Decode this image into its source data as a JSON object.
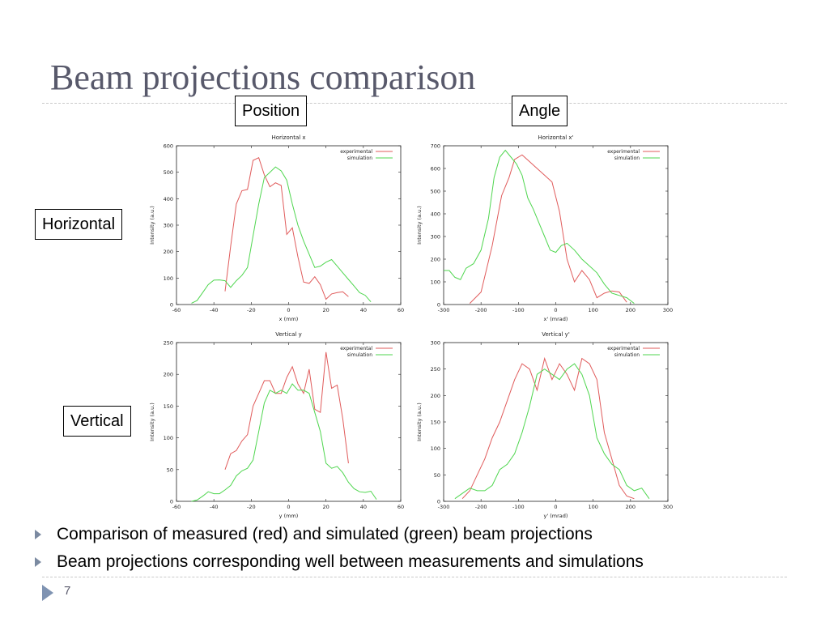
{
  "slide": {
    "title": "Beam projections comparison",
    "col_labels": [
      "Position",
      "Angle"
    ],
    "row_labels": [
      "Horizontal",
      "Vertical"
    ],
    "bullets": [
      "Comparison of measured (red) and simulated (green) beam projections",
      "Beam projections corresponding well between measurements and simulations"
    ],
    "page_number": "7"
  },
  "colors": {
    "experimental": "#e05b5b",
    "simulation": "#4fd64f",
    "title": "#58596b",
    "bullet": "#7b8aa1"
  },
  "icons": {
    "bullet": "triangle-bullet-icon",
    "footer": "triangle-footer-icon"
  },
  "chart_data": [
    {
      "type": "line",
      "title": "Horizontal x",
      "xlabel": "x (mm)",
      "ylabel": "Intensity (a.u.)",
      "xlim": [
        -60,
        60
      ],
      "ylim": [
        0,
        600
      ],
      "xticks": [
        "-60",
        "-40",
        "-20",
        "0",
        "20",
        "40",
        "60"
      ],
      "yticks": [
        "0",
        "100",
        "200",
        "300",
        "400",
        "500",
        "600"
      ],
      "legend": "top-right",
      "series": [
        {
          "name": "experimental",
          "x": [
            -34,
            -31,
            -28,
            -25,
            -22,
            -19,
            -16,
            -13,
            -10,
            -7,
            -4,
            -1,
            2,
            5,
            8,
            11,
            14,
            17,
            20,
            23,
            26,
            29,
            32
          ],
          "y": [
            50,
            220,
            380,
            430,
            435,
            545,
            555,
            490,
            445,
            460,
            450,
            265,
            290,
            180,
            85,
            80,
            105,
            75,
            20,
            40,
            45,
            48,
            30
          ]
        },
        {
          "name": "simulation",
          "x": [
            -52,
            -49,
            -46,
            -43,
            -40,
            -37,
            -34,
            -31,
            -28,
            -25,
            -22,
            -19,
            -16,
            -13,
            -10,
            -7,
            -4,
            -1,
            2,
            5,
            8,
            11,
            14,
            17,
            20,
            23,
            26,
            29,
            32,
            35,
            38,
            41,
            44
          ],
          "y": [
            5,
            15,
            45,
            75,
            92,
            93,
            90,
            65,
            90,
            110,
            140,
            260,
            380,
            480,
            500,
            520,
            505,
            470,
            380,
            300,
            240,
            190,
            140,
            145,
            160,
            170,
            145,
            120,
            95,
            70,
            45,
            35,
            10
          ]
        }
      ]
    },
    {
      "type": "line",
      "title": "Horizontal x'",
      "xlabel": "x' (mrad)",
      "ylabel": "Intensity (a.u.)",
      "xlim": [
        -300,
        300
      ],
      "ylim": [
        0,
        700
      ],
      "xticks": [
        "-300",
        "-200",
        "-100",
        "0",
        "100",
        "200",
        "300"
      ],
      "yticks": [
        "0",
        "100",
        "200",
        "300",
        "400",
        "500",
        "600",
        "700"
      ],
      "legend": "top-right",
      "series": [
        {
          "name": "experimental",
          "x": [
            -230,
            -200,
            -170,
            -145,
            -125,
            -110,
            -90,
            -70,
            -50,
            -30,
            -10,
            10,
            30,
            50,
            70,
            90,
            110,
            130,
            150,
            170,
            190
          ],
          "y": [
            5,
            55,
            260,
            480,
            560,
            640,
            660,
            630,
            600,
            570,
            540,
            410,
            200,
            100,
            150,
            110,
            30,
            50,
            60,
            55,
            10
          ]
        },
        {
          "name": "simulation",
          "x": [
            -300,
            -285,
            -270,
            -255,
            -240,
            -220,
            -200,
            -180,
            -165,
            -150,
            -135,
            -120,
            -105,
            -90,
            -75,
            -60,
            -45,
            -30,
            -15,
            0,
            15,
            30,
            50,
            70,
            90,
            110,
            130,
            150,
            170,
            190,
            210
          ],
          "y": [
            150,
            150,
            120,
            110,
            160,
            180,
            240,
            380,
            560,
            650,
            680,
            650,
            620,
            570,
            470,
            420,
            360,
            300,
            240,
            230,
            260,
            270,
            240,
            200,
            170,
            140,
            90,
            50,
            40,
            30,
            5
          ]
        }
      ]
    },
    {
      "type": "line",
      "title": "Vertical y",
      "xlabel": "y (mm)",
      "ylabel": "Intensity (a.u.)",
      "xlim": [
        -60,
        60
      ],
      "ylim": [
        0,
        250
      ],
      "xticks": [
        "-60",
        "-40",
        "-20",
        "0",
        "20",
        "40",
        "60"
      ],
      "yticks": [
        "0",
        "50",
        "100",
        "150",
        "200",
        "250"
      ],
      "legend": "top-right",
      "series": [
        {
          "name": "experimental",
          "x": [
            -34,
            -31,
            -28,
            -25,
            -22,
            -19,
            -16,
            -13,
            -10,
            -7,
            -4,
            -1,
            2,
            5,
            8,
            11,
            14,
            17,
            20,
            23,
            26,
            29,
            32
          ],
          "y": [
            50,
            75,
            80,
            95,
            105,
            150,
            170,
            190,
            190,
            170,
            170,
            195,
            212,
            185,
            170,
            208,
            145,
            140,
            235,
            178,
            183,
            130,
            60
          ]
        },
        {
          "name": "simulation",
          "x": [
            -52,
            -49,
            -46,
            -43,
            -40,
            -37,
            -34,
            -31,
            -28,
            -25,
            -22,
            -19,
            -16,
            -13,
            -10,
            -7,
            -4,
            -1,
            2,
            5,
            8,
            11,
            14,
            17,
            20,
            23,
            26,
            29,
            32,
            35,
            38,
            41,
            44,
            47
          ],
          "y": [
            0,
            2,
            8,
            15,
            12,
            12,
            18,
            25,
            40,
            48,
            52,
            65,
            110,
            155,
            175,
            170,
            175,
            170,
            185,
            175,
            175,
            170,
            140,
            110,
            60,
            52,
            55,
            45,
            30,
            20,
            15,
            14,
            16,
            3
          ]
        }
      ]
    },
    {
      "type": "line",
      "title": "Vertical y'",
      "xlabel": "y' (mrad)",
      "ylabel": "Intensity (a.u.)",
      "xlim": [
        -300,
        300
      ],
      "ylim": [
        0,
        300
      ],
      "xticks": [
        "-300",
        "-200",
        "-100",
        "0",
        "100",
        "200",
        "300"
      ],
      "yticks": [
        "0",
        "50",
        "100",
        "150",
        "200",
        "250",
        "300"
      ],
      "legend": "top-right",
      "series": [
        {
          "name": "experimental",
          "x": [
            -250,
            -230,
            -210,
            -190,
            -170,
            -150,
            -130,
            -110,
            -90,
            -70,
            -50,
            -30,
            -10,
            10,
            30,
            50,
            70,
            90,
            110,
            130,
            150,
            170,
            190,
            210
          ],
          "y": [
            5,
            20,
            50,
            80,
            120,
            150,
            190,
            230,
            260,
            250,
            210,
            270,
            230,
            260,
            240,
            210,
            270,
            260,
            230,
            130,
            80,
            30,
            10,
            5
          ]
        },
        {
          "name": "simulation",
          "x": [
            -270,
            -250,
            -230,
            -210,
            -190,
            -170,
            -150,
            -130,
            -110,
            -90,
            -70,
            -50,
            -30,
            -10,
            10,
            30,
            50,
            70,
            90,
            110,
            130,
            150,
            170,
            190,
            210,
            230,
            250
          ],
          "y": [
            5,
            15,
            25,
            20,
            20,
            30,
            60,
            70,
            90,
            130,
            180,
            240,
            250,
            240,
            230,
            250,
            260,
            240,
            200,
            120,
            90,
            70,
            60,
            30,
            20,
            25,
            5
          ]
        }
      ]
    }
  ]
}
